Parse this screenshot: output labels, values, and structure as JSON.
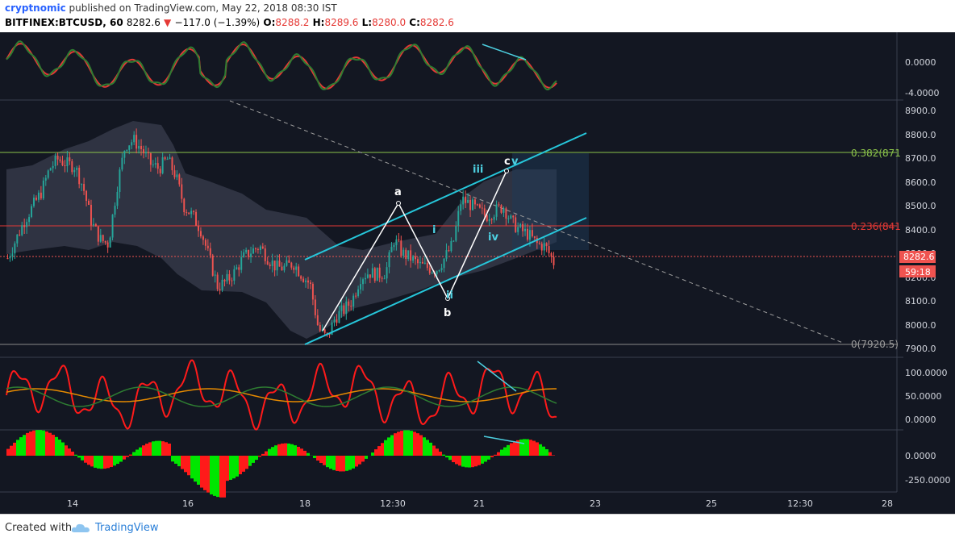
{
  "header": {
    "username": "cryptnomic",
    "published_text": "published on TradingView.com, May 22, 2018 08:30 IST",
    "symbol": "BITFINEX:BTCUSD, 60",
    "last": "8282.6",
    "change": "−117.0 (−1.39%)",
    "open_label": "O:",
    "open": "8288.2",
    "high_label": "H:",
    "high": "8289.6",
    "low_label": "L:",
    "low": "8280.0",
    "close_label": "C:",
    "close": "8282.6"
  },
  "colors": {
    "background": "#131722",
    "bull": "#26a69a",
    "bear": "#ef5350",
    "channel": "#26c6da",
    "fib382": "#8bc34a",
    "fib236": "#e53935",
    "wave_label": "#4dd0e1"
  },
  "panes": {
    "osc1_ticks": [
      "0.0000",
      "-4.0000"
    ],
    "price_ticks": [
      "8900.0",
      "8800.0",
      "8700.0",
      "8600.0",
      "8500.0",
      "8400.0",
      "8300.0",
      "8200.0",
      "8100.0",
      "8000.0",
      "7900.0"
    ],
    "osc2_ticks": [
      "100.0000",
      "50.0000",
      "0.0000"
    ],
    "osc3_ticks": [
      "0.0000",
      "-250.0000"
    ],
    "time_ticks": [
      "14",
      "16",
      "18",
      "12:30",
      "21",
      "23",
      "25",
      "12:30",
      "28"
    ]
  },
  "price_badge": {
    "price": "8282.6",
    "countdown": "59:18"
  },
  "fib": {
    "level_382": "0.382(871",
    "level_236": "0.236(841",
    "level_0": "0(7920.5)"
  },
  "waves": {
    "a": "a",
    "b": "b",
    "c": "c",
    "i": "i",
    "ii": "ii",
    "iii": "iii",
    "iv": "iv",
    "v": "v"
  },
  "footer": {
    "created_with": "Created with",
    "brand": "TradingView"
  },
  "chart_data": {
    "type": "candlestick",
    "symbol": "BITFINEX:BTCUSD",
    "interval": "60",
    "ylim": [
      7880,
      8960
    ],
    "y_ticks": [
      7900,
      8000,
      8100,
      8200,
      8300,
      8400,
      8500,
      8600,
      8700,
      8800,
      8900
    ],
    "x_ticks": [
      "14",
      "16",
      "18",
      "12:30",
      "21",
      "23",
      "25",
      "12:30",
      "28"
    ],
    "last_price": 8282.6,
    "fib_levels": [
      {
        "label": "0.382",
        "value": 8710
      },
      {
        "label": "0.236",
        "value": 8410
      },
      {
        "label": "0",
        "value": 7920.5
      }
    ],
    "path_close": [
      8300,
      8380,
      8460,
      8520,
      8580,
      8680,
      8720,
      8700,
      8690,
      8600,
      8450,
      8380,
      8360,
      8600,
      8780,
      8800,
      8760,
      8700,
      8680,
      8720,
      8650,
      8520,
      8480,
      8420,
      8300,
      8180,
      8200,
      8240,
      8300,
      8330,
      8350,
      8300,
      8260,
      8260,
      8280,
      8230,
      8190,
      8000,
      7960,
      8050,
      8080,
      8120,
      8220,
      8240,
      8230,
      8240,
      8380,
      8320,
      8300,
      8270,
      8260,
      8250,
      8300,
      8360,
      8550,
      8530,
      8500,
      8480,
      8500,
      8520,
      8450,
      8420,
      8400,
      8360,
      8350,
      8282.6
    ],
    "elliott_points": [
      {
        "label": "a",
        "value": 8510
      },
      {
        "label": "b",
        "value": 8110
      },
      {
        "label": "c",
        "value": 8650
      }
    ]
  }
}
